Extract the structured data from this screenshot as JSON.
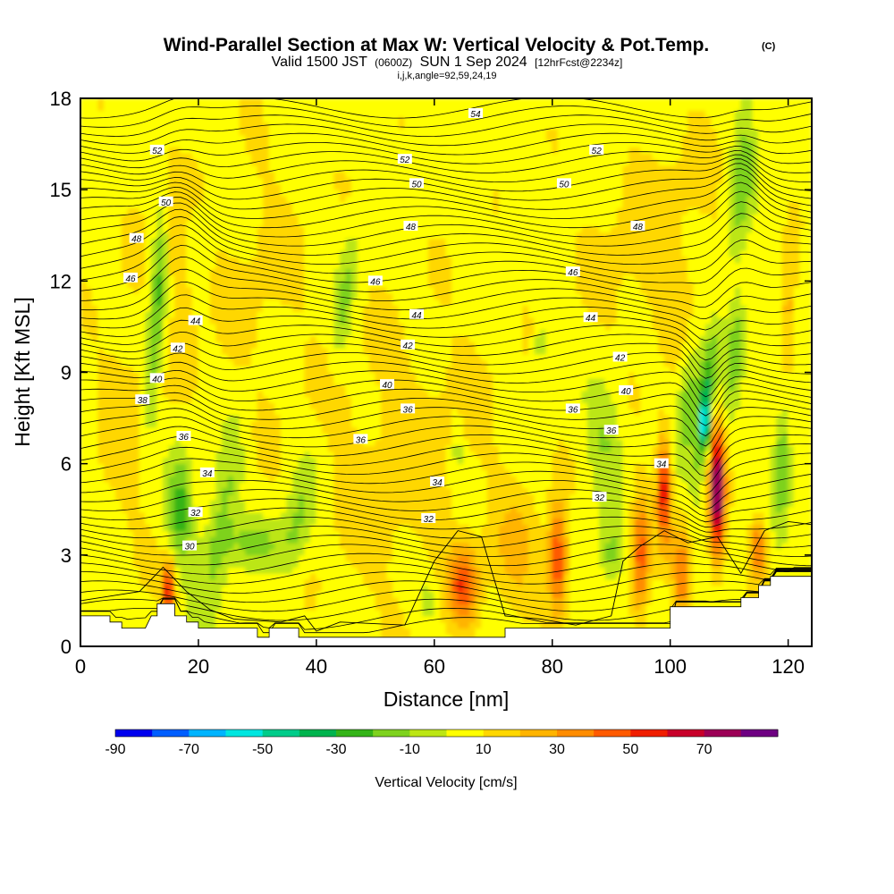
{
  "chart_data": {
    "type": "heatmap",
    "title": "Wind-Parallel Section at Max W: Vertical Velocity & Pot.Temp.",
    "title_mark": "(C)",
    "subtitle_parts": [
      "Valid 1500 JST",
      "(0600Z)",
      "SUN 1 Sep 2024",
      "[12hrFcst@2234z]"
    ],
    "subtitle_small": "i,j,k,angle=92,59,24,19",
    "xlabel": "Distance [nm]",
    "ylabel": "Height [Kft MSL]",
    "xlim": [
      0,
      124
    ],
    "ylim": [
      0,
      18
    ],
    "x_ticks": [
      0,
      20,
      40,
      60,
      80,
      100,
      120
    ],
    "y_ticks": [
      0,
      3,
      6,
      9,
      12,
      15,
      18
    ],
    "colorbar": {
      "title": "Vertical Velocity [cm/s]",
      "levels": [
        -90,
        -80,
        -70,
        -60,
        -50,
        -40,
        -30,
        -20,
        -10,
        0,
        10,
        20,
        30,
        40,
        50,
        60,
        70,
        80
      ],
      "colors": [
        "#0000ee",
        "#005eff",
        "#00b4ff",
        "#00e6e0",
        "#00cc8a",
        "#00b44e",
        "#34b418",
        "#7ed21e",
        "#bce614",
        "#ffff00",
        "#ffd700",
        "#ffb400",
        "#ff8c00",
        "#ff5a00",
        "#f01e00",
        "#c8002a",
        "#9c0056",
        "#6e0082"
      ],
      "tick_labels": [
        "-90",
        "-70",
        "-50",
        "-30",
        "-10",
        "10",
        "30",
        "50",
        "70"
      ]
    },
    "theta_contours": {
      "labels": [
        {
          "text": "54",
          "x": 67,
          "y": 17.5
        },
        {
          "text": "52",
          "x": 13,
          "y": 16.3
        },
        {
          "text": "52",
          "x": 55,
          "y": 16.0
        },
        {
          "text": "52",
          "x": 87.5,
          "y": 16.3
        },
        {
          "text": "50",
          "x": 14.5,
          "y": 14.6
        },
        {
          "text": "50",
          "x": 57,
          "y": 15.2
        },
        {
          "text": "50",
          "x": 82,
          "y": 15.2
        },
        {
          "text": "48",
          "x": 9.5,
          "y": 13.4
        },
        {
          "text": "48",
          "x": 56,
          "y": 13.8
        },
        {
          "text": "48",
          "x": 94.5,
          "y": 13.8
        },
        {
          "text": "46",
          "x": 8.5,
          "y": 12.1
        },
        {
          "text": "46",
          "x": 50,
          "y": 12.0
        },
        {
          "text": "46",
          "x": 83.5,
          "y": 12.3
        },
        {
          "text": "44",
          "x": 19.5,
          "y": 10.7
        },
        {
          "text": "44",
          "x": 57,
          "y": 10.9
        },
        {
          "text": "44",
          "x": 86.5,
          "y": 10.8
        },
        {
          "text": "42",
          "x": 16.5,
          "y": 9.8
        },
        {
          "text": "42",
          "x": 55.5,
          "y": 9.9
        },
        {
          "text": "42",
          "x": 91.5,
          "y": 9.5
        },
        {
          "text": "40",
          "x": 13,
          "y": 8.8
        },
        {
          "text": "40",
          "x": 52,
          "y": 8.6
        },
        {
          "text": "40",
          "x": 92.5,
          "y": 8.4
        },
        {
          "text": "38",
          "x": 10.5,
          "y": 8.1
        },
        {
          "text": "36",
          "x": 17.5,
          "y": 6.9
        },
        {
          "text": "36",
          "x": 55.5,
          "y": 7.8
        },
        {
          "text": "36",
          "x": 83.5,
          "y": 7.8
        },
        {
          "text": "36",
          "x": 47.5,
          "y": 6.8
        },
        {
          "text": "36",
          "x": 90,
          "y": 7.1
        },
        {
          "text": "34",
          "x": 21.5,
          "y": 5.7
        },
        {
          "text": "34",
          "x": 60.5,
          "y": 5.4
        },
        {
          "text": "34",
          "x": 98.5,
          "y": 6.0
        },
        {
          "text": "32",
          "x": 19.5,
          "y": 4.4
        },
        {
          "text": "32",
          "x": 59,
          "y": 4.2
        },
        {
          "text": "32",
          "x": 88,
          "y": 4.9
        },
        {
          "text": "30",
          "x": 18.5,
          "y": 3.3
        }
      ]
    }
  }
}
